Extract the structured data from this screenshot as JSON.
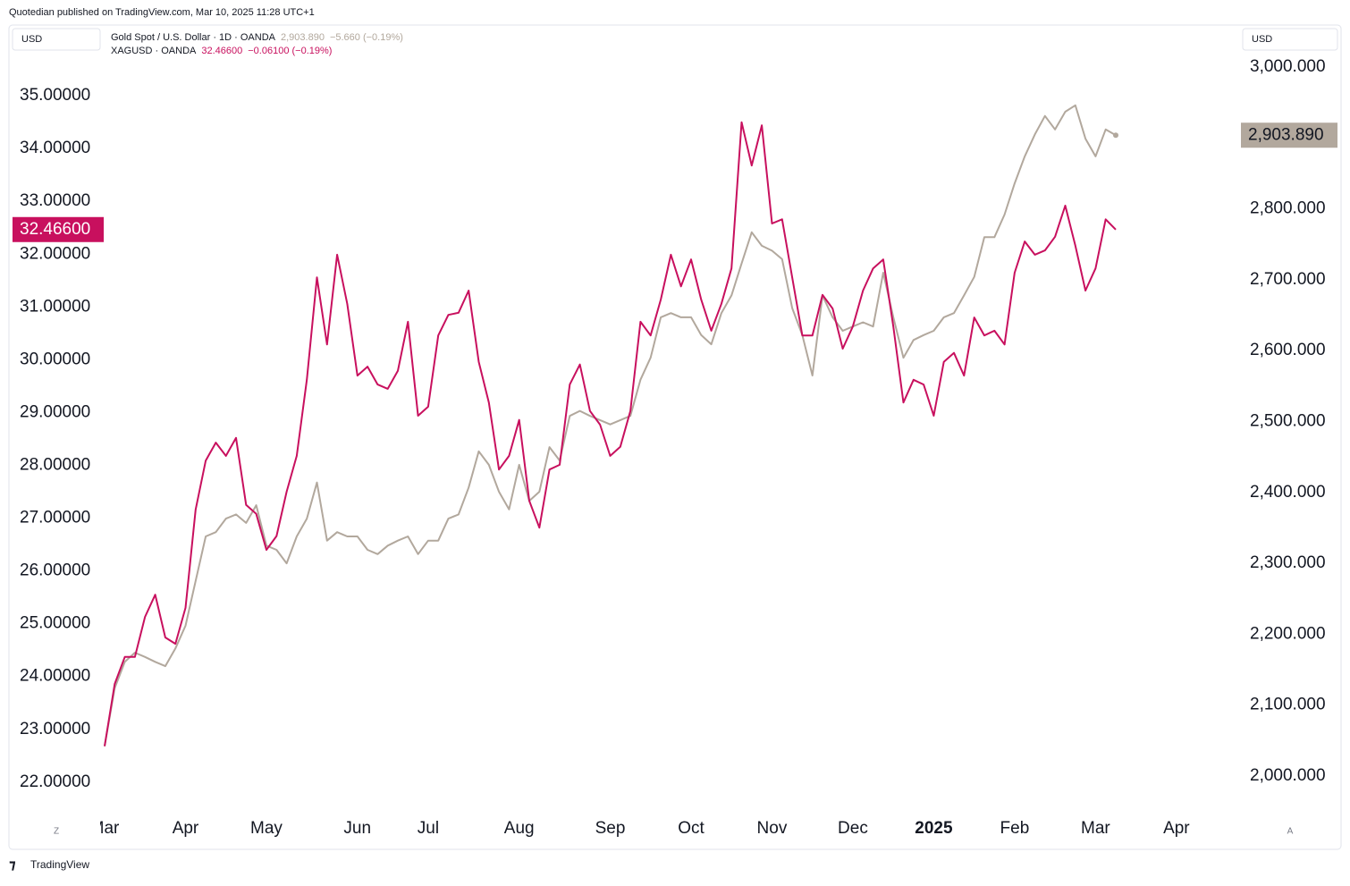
{
  "header": "Quotedian published on TradingView.com, Mar 10, 2025 11:28 UTC+1",
  "footer": "TradingView",
  "chart_data": {
    "type": "line",
    "left_unit": "USD",
    "right_unit": "USD",
    "left_button": "Z",
    "right_button": "A",
    "categories": [
      "Mar",
      null,
      null,
      null,
      null,
      null,
      null,
      null,
      "Apr",
      null,
      null,
      null,
      null,
      null,
      null,
      null,
      "May",
      null,
      null,
      null,
      null,
      null,
      null,
      null,
      null,
      "Jun",
      null,
      null,
      null,
      null,
      null,
      null,
      "Jul",
      null,
      null,
      null,
      null,
      null,
      null,
      null,
      null,
      "Aug",
      null,
      null,
      null,
      null,
      null,
      null,
      null,
      null,
      "Sep",
      null,
      null,
      null,
      null,
      null,
      null,
      null,
      "Oct",
      null,
      null,
      null,
      null,
      null,
      null,
      null,
      "Nov",
      null,
      null,
      null,
      null,
      null,
      null,
      null,
      "Dec",
      null,
      null,
      null,
      null,
      null,
      null,
      null,
      "2025",
      null,
      null,
      null,
      null,
      null,
      null,
      null,
      "Feb",
      null,
      null,
      null,
      null,
      null,
      null,
      null,
      "Mar",
      null,
      null,
      null,
      null,
      null,
      null,
      null,
      "Apr",
      null,
      null,
      null,
      null,
      null,
      null
    ],
    "series": [
      {
        "name": "Gold Spot / U.S. Dollar · 1D · OANDA",
        "legend_value": "2,903.890",
        "legend_change": "−5.660 (−0.19%)",
        "color": "#b2a89d",
        "axis": "y2",
        "values": [
          2042,
          2124,
          2161,
          2174,
          2168,
          2161,
          2155,
          2180,
          2212,
          2275,
          2338,
          2344,
          2363,
          2369,
          2357,
          2382,
          2325,
          2319,
          2300,
          2338,
          2363,
          2414,
          2332,
          2344,
          2338,
          2338,
          2319,
          2313,
          2325,
          2332,
          2338,
          2313,
          2332,
          2332,
          2363,
          2369,
          2407,
          2458,
          2439,
          2401,
          2376,
          2439,
          2388,
          2401,
          2464,
          2445,
          2508,
          2515,
          2508,
          2502,
          2496,
          2502,
          2508,
          2559,
          2590,
          2647,
          2653,
          2647,
          2647,
          2622,
          2609,
          2653,
          2678,
          2723,
          2767,
          2748,
          2741,
          2729,
          2660,
          2622,
          2565,
          2678,
          2647,
          2628,
          2634,
          2640,
          2634,
          2710,
          2647,
          2590,
          2615,
          2622,
          2628,
          2647,
          2653,
          2678,
          2704,
          2760,
          2760,
          2792,
          2836,
          2874,
          2905,
          2931,
          2912,
          2937,
          2946,
          2899,
          2874,
          2912,
          2903.89,
          null,
          null,
          null,
          null,
          null,
          null,
          null,
          null,
          null,
          null,
          null,
          null
        ],
        "value_labels": [
          null,
          null,
          null,
          null,
          null,
          null,
          null,
          null,
          null,
          null,
          null,
          null,
          null,
          null,
          null,
          null,
          null,
          null,
          null,
          null,
          null,
          null,
          null,
          null,
          null,
          null,
          null,
          null,
          null,
          null,
          null,
          null,
          null,
          null,
          null,
          null,
          null,
          null,
          null,
          null,
          null,
          null,
          null,
          null,
          null,
          null,
          null,
          null,
          null,
          null,
          null,
          null,
          null,
          null,
          null,
          null,
          null,
          null,
          null,
          null,
          null,
          null,
          null,
          null,
          null,
          null,
          null,
          null,
          null,
          null,
          null,
          null,
          null,
          null,
          null,
          null,
          null,
          null,
          null,
          null,
          null,
          null,
          null,
          null,
          null,
          null,
          null,
          null,
          null,
          null,
          null,
          null,
          null,
          null,
          null,
          null,
          null,
          null,
          null,
          null,
          "2,903.890",
          null,
          null,
          null,
          null,
          null,
          null,
          null,
          null,
          null,
          null,
          null,
          null
        ]
      },
      {
        "name": "XAGUSD · OANDA",
        "legend_value": "32.46600",
        "legend_change": "−0.06100 (−0.19%)",
        "color": "#c8105e",
        "axis": "y",
        "values": [
          22.68,
          23.86,
          24.37,
          24.37,
          25.13,
          25.55,
          24.74,
          24.62,
          25.3,
          27.16,
          28.09,
          28.43,
          28.18,
          28.52,
          27.25,
          27.08,
          26.4,
          26.66,
          27.5,
          28.18,
          29.62,
          31.56,
          30.29,
          31.99,
          31.06,
          29.7,
          29.87,
          29.53,
          29.45,
          29.79,
          30.72,
          28.94,
          29.11,
          30.46,
          30.85,
          30.89,
          31.31,
          29.96,
          29.19,
          27.92,
          28.18,
          28.86,
          27.33,
          26.82,
          27.92,
          28.01,
          29.53,
          29.91,
          29.03,
          28.77,
          28.18,
          28.35,
          29.03,
          30.72,
          30.46,
          31.14,
          31.99,
          31.39,
          31.9,
          31.14,
          30.55,
          31.06,
          31.73,
          34.5,
          33.68,
          34.44,
          32.58,
          32.66,
          31.56,
          30.46,
          30.46,
          31.23,
          30.97,
          30.21,
          30.63,
          31.31,
          31.73,
          31.9,
          30.63,
          29.19,
          29.62,
          29.53,
          28.94,
          29.96,
          30.13,
          29.7,
          30.8,
          30.46,
          30.55,
          30.29,
          31.65,
          32.24,
          31.99,
          32.07,
          32.33,
          32.92,
          32.16,
          31.31,
          31.73,
          32.66,
          32.466,
          null,
          null,
          null,
          null,
          null,
          null,
          null,
          null,
          null,
          null,
          null,
          null
        ],
        "value_labels": [
          null,
          null,
          null,
          null,
          null,
          null,
          null,
          null,
          null,
          null,
          null,
          null,
          null,
          null,
          null,
          null,
          null,
          null,
          null,
          null,
          null,
          null,
          null,
          null,
          null,
          null,
          null,
          null,
          null,
          null,
          null,
          null,
          null,
          null,
          null,
          null,
          null,
          null,
          null,
          null,
          null,
          null,
          null,
          null,
          null,
          null,
          null,
          null,
          null,
          null,
          null,
          null,
          null,
          null,
          null,
          null,
          null,
          null,
          null,
          null,
          null,
          null,
          null,
          null,
          null,
          null,
          null,
          null,
          null,
          null,
          null,
          null,
          null,
          null,
          null,
          null,
          null,
          null,
          null,
          null,
          null,
          null,
          null,
          null,
          null,
          null,
          null,
          null,
          null,
          null,
          null,
          null,
          null,
          null,
          null,
          null,
          null,
          null,
          null,
          null,
          "32.46600",
          null,
          null,
          null,
          null,
          null,
          null,
          null,
          null,
          null,
          null,
          null,
          null
        ]
      }
    ],
    "ylim": [
      21.37,
      36.34
    ],
    "yticks": [
      {
        "value": 22,
        "label": "22.00000"
      },
      {
        "value": 23,
        "label": "23.00000"
      },
      {
        "value": 24,
        "label": "24.00000"
      },
      {
        "value": 25,
        "label": "25.00000"
      },
      {
        "value": 26,
        "label": "26.00000"
      },
      {
        "value": 27,
        "label": "27.00000"
      },
      {
        "value": 28,
        "label": "28.00000"
      },
      {
        "value": 29,
        "label": "29.00000"
      },
      {
        "value": 30,
        "label": "30.00000"
      },
      {
        "value": 31,
        "label": "31.00000"
      },
      {
        "value": 32,
        "label": "32.00000"
      },
      {
        "value": 33,
        "label": "33.00000"
      },
      {
        "value": 34,
        "label": "34.00000"
      },
      {
        "value": 35,
        "label": "35.00000"
      }
    ],
    "y2lim": [
      1944.5,
      3059.3
    ],
    "y2ticks": [
      {
        "value": 2000,
        "label": "2,000.000"
      },
      {
        "value": 2100,
        "label": "2,100.000"
      },
      {
        "value": 2200,
        "label": "2,200.000"
      },
      {
        "value": 2300,
        "label": "2,300.000"
      },
      {
        "value": 2400,
        "label": "2,400.000"
      },
      {
        "value": 2500,
        "label": "2,500.000"
      },
      {
        "value": 2600,
        "label": "2,600.000"
      },
      {
        "value": 2700,
        "label": "2,700.000"
      },
      {
        "value": 2800,
        "label": "2,800.000"
      },
      {
        "value": 2900,
        "label": "2,900.000"
      },
      {
        "value": 3000,
        "label": "3,000.000"
      }
    ],
    "grid": false
  }
}
